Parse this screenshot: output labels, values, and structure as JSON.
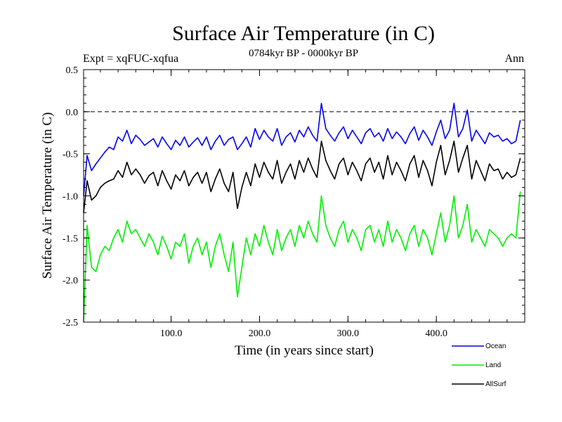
{
  "chart_data": {
    "type": "line",
    "title": "Surface Air Temperature (in C)",
    "subtitle": "0784kyr BP - 0000kyr BP",
    "experiment_label": "Expt = xqFUC-xqfua",
    "season_label": "Ann",
    "xlabel": "Time (in years since start)",
    "ylabel": "Surface Air Temperature (in C)",
    "xlim": [
      1,
      500
    ],
    "ylim": [
      -2.5,
      0.5
    ],
    "x_ticks": [
      100,
      200,
      300,
      400
    ],
    "x_tick_labels": [
      "100.0",
      "200.0",
      "300.0",
      "400.0"
    ],
    "y_ticks": [
      -2.5,
      -2.0,
      -1.5,
      -1.0,
      -0.5,
      0.0,
      0.5
    ],
    "y_tick_labels": [
      "-2.5",
      "-2.0",
      "-1.5",
      "-1.0",
      "-0.5",
      "0.0",
      "0.5"
    ],
    "reference_line": {
      "y": 0.0,
      "style": "dashed"
    },
    "x_step": 5,
    "series": [
      {
        "name": "Ocean",
        "color": "#0000ee",
        "values": [
          -1.0,
          -0.52,
          -0.7,
          -0.62,
          -0.55,
          -0.48,
          -0.42,
          -0.45,
          -0.3,
          -0.35,
          -0.22,
          -0.38,
          -0.28,
          -0.33,
          -0.4,
          -0.36,
          -0.32,
          -0.42,
          -0.3,
          -0.38,
          -0.45,
          -0.34,
          -0.4,
          -0.3,
          -0.42,
          -0.36,
          -0.31,
          -0.4,
          -0.3,
          -0.45,
          -0.35,
          -0.28,
          -0.4,
          -0.33,
          -0.3,
          -0.45,
          -0.38,
          -0.3,
          -0.42,
          -0.2,
          -0.33,
          -0.22,
          -0.3,
          -0.35,
          -0.2,
          -0.4,
          -0.3,
          -0.25,
          -0.36,
          -0.22,
          -0.3,
          -0.18,
          -0.28,
          -0.35,
          0.1,
          -0.2,
          -0.28,
          -0.35,
          -0.25,
          -0.18,
          -0.32,
          -0.22,
          -0.3,
          -0.38,
          -0.25,
          -0.2,
          -0.3,
          -0.25,
          -0.35,
          -0.2,
          -0.32,
          -0.24,
          -0.3,
          -0.38,
          -0.26,
          -0.18,
          -0.34,
          -0.22,
          -0.3,
          -0.4,
          -0.24,
          -0.1,
          -0.32,
          -0.22,
          0.1,
          -0.3,
          -0.2,
          0.02,
          -0.35,
          -0.22,
          -0.3,
          -0.38,
          -0.25,
          -0.3,
          -0.28,
          -0.35,
          -0.32,
          -0.38,
          -0.35,
          -0.1
        ]
      },
      {
        "name": "Land",
        "color": "#00ee00",
        "values": [
          -2.5,
          -1.35,
          -1.85,
          -1.9,
          -1.7,
          -1.6,
          -1.65,
          -1.5,
          -1.4,
          -1.55,
          -1.3,
          -1.45,
          -1.4,
          -1.5,
          -1.6,
          -1.45,
          -1.55,
          -1.7,
          -1.48,
          -1.6,
          -1.75,
          -1.55,
          -1.6,
          -1.45,
          -1.8,
          -1.6,
          -1.5,
          -1.7,
          -1.55,
          -1.85,
          -1.6,
          -1.45,
          -1.7,
          -1.9,
          -1.55,
          -2.2,
          -1.85,
          -1.5,
          -1.7,
          -1.45,
          -1.6,
          -1.35,
          -1.55,
          -1.7,
          -1.4,
          -1.65,
          -1.5,
          -1.4,
          -1.6,
          -1.35,
          -1.5,
          -1.3,
          -1.45,
          -1.55,
          -1.0,
          -1.35,
          -1.5,
          -1.6,
          -1.4,
          -1.3,
          -1.55,
          -1.4,
          -1.5,
          -1.65,
          -1.4,
          -1.35,
          -1.55,
          -1.4,
          -1.6,
          -1.3,
          -1.55,
          -1.4,
          -1.5,
          -1.65,
          -1.45,
          -1.35,
          -1.6,
          -1.4,
          -1.5,
          -1.7,
          -1.45,
          -1.2,
          -1.55,
          -1.35,
          -1.0,
          -1.5,
          -1.35,
          -1.1,
          -1.55,
          -1.4,
          -1.5,
          -1.6,
          -1.4,
          -1.45,
          -1.5,
          -1.6,
          -1.5,
          -1.45,
          -1.5,
          -0.95
        ]
      },
      {
        "name": "AllSurf",
        "color": "#000000",
        "values": [
          -1.2,
          -0.82,
          -1.05,
          -1.0,
          -0.9,
          -0.85,
          -0.82,
          -0.8,
          -0.7,
          -0.78,
          -0.6,
          -0.75,
          -0.68,
          -0.75,
          -0.85,
          -0.76,
          -0.72,
          -0.88,
          -0.7,
          -0.82,
          -0.92,
          -0.75,
          -0.82,
          -0.7,
          -0.88,
          -0.78,
          -0.72,
          -0.85,
          -0.72,
          -0.95,
          -0.8,
          -0.68,
          -0.85,
          -0.95,
          -0.72,
          -1.15,
          -0.9,
          -0.72,
          -0.88,
          -0.62,
          -0.78,
          -0.6,
          -0.72,
          -0.8,
          -0.58,
          -0.85,
          -0.72,
          -0.62,
          -0.8,
          -0.58,
          -0.72,
          -0.55,
          -0.68,
          -0.78,
          -0.35,
          -0.58,
          -0.7,
          -0.8,
          -0.62,
          -0.55,
          -0.75,
          -0.6,
          -0.7,
          -0.82,
          -0.62,
          -0.55,
          -0.72,
          -0.6,
          -0.8,
          -0.52,
          -0.75,
          -0.6,
          -0.7,
          -0.82,
          -0.62,
          -0.52,
          -0.78,
          -0.58,
          -0.7,
          -0.88,
          -0.6,
          -0.4,
          -0.75,
          -0.58,
          -0.35,
          -0.72,
          -0.55,
          -0.4,
          -0.8,
          -0.58,
          -0.7,
          -0.82,
          -0.62,
          -0.7,
          -0.68,
          -0.8,
          -0.72,
          -0.78,
          -0.75,
          -0.55
        ]
      }
    ],
    "legend": {
      "placement": "bottom-right",
      "entries": [
        {
          "label": "Ocean",
          "color": "#0000ee"
        },
        {
          "label": "Land",
          "color": "#00ee00"
        },
        {
          "label": "AllSurf",
          "color": "#000000"
        }
      ]
    }
  }
}
